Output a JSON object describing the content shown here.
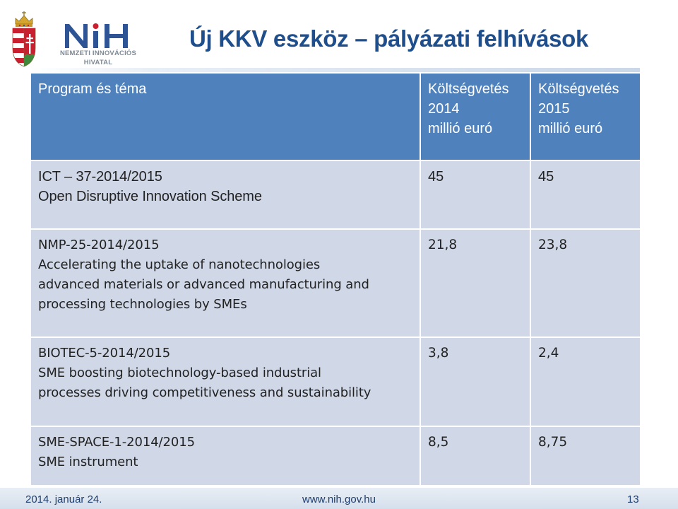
{
  "slide": {
    "title": "Új KKV eszköz – pályázati felhívások"
  },
  "logo": {
    "subtitle_line1": "NEMZETI INNOVÁCIÓS",
    "subtitle_line2": "HIVATAL",
    "colors": {
      "blue": "#2e5496",
      "red": "#c8202f",
      "grey": "#7f8a96"
    }
  },
  "table": {
    "header": {
      "program": "Program és téma",
      "budget_2014": [
        "Költségvetés",
        "2014",
        "millió euró"
      ],
      "budget_2015": [
        "Költségvetés",
        "2015",
        "millió euró"
      ]
    },
    "rows": [
      {
        "program_lines": [
          "ICT – 37-2014/2015",
          "Open Disruptive Innovation Scheme"
        ],
        "budget_2014": "45",
        "budget_2015": "45"
      },
      {
        "program_lines": [
          "NMP-25-2014/2015",
          "Accelerating the uptake of nanotechnologies",
          "advanced materials or advanced manufacturing and",
          "processing technologies by SMEs"
        ],
        "budget_2014": "21,8",
        "budget_2015": "23,8"
      },
      {
        "program_lines": [
          "BIOTEC-5-2014/2015",
          "SME boosting biotechnology-based industrial",
          "processes driving competitiveness and sustainability"
        ],
        "budget_2014": "3,8",
        "budget_2015": "2,4"
      },
      {
        "program_lines": [
          "SME-SPACE-1-2014/2015",
          "SME instrument"
        ],
        "budget_2014": "8,5",
        "budget_2015": "8,75"
      }
    ]
  },
  "footer": {
    "date": "2014. január 24.",
    "website": "www.nih.gov.hu",
    "page_number": "13"
  },
  "colors": {
    "title": "#1f4e8c",
    "header_bg": "#4f81bd",
    "row_bg": "#d0d8e8"
  }
}
